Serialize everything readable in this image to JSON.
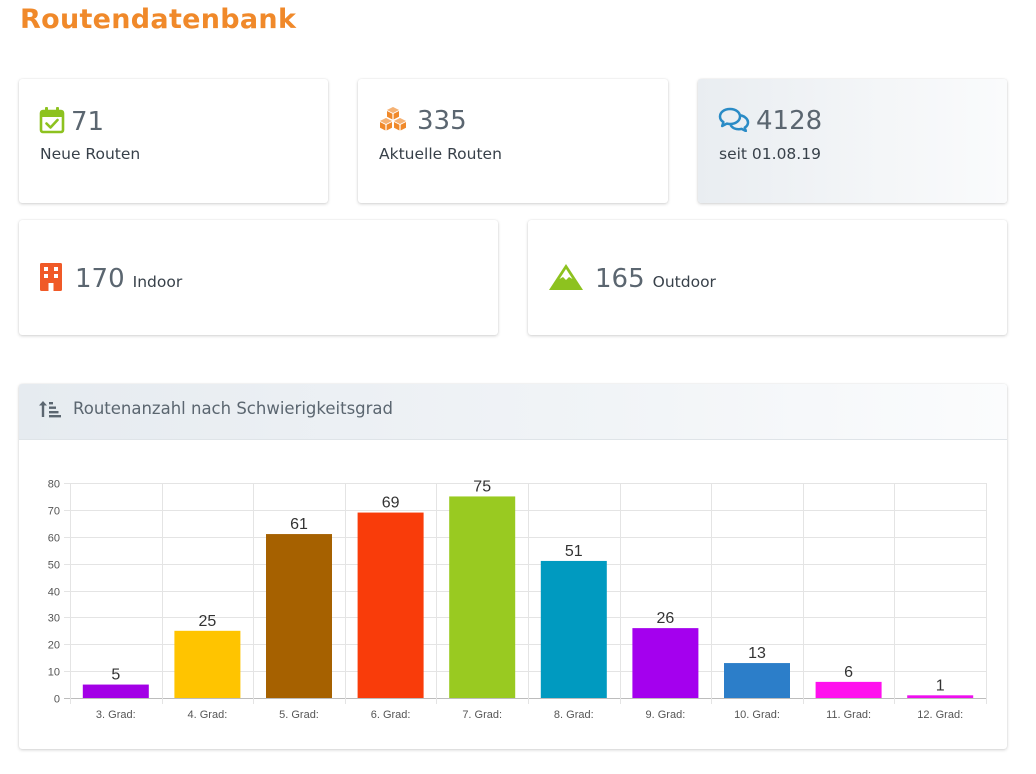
{
  "page": {
    "title": "Routendatenbank"
  },
  "stats": {
    "neue": {
      "value": "71",
      "label": "Neue Routen",
      "icon": "calendar-check-icon",
      "color": "#8dc21f"
    },
    "aktuelle": {
      "value": "335",
      "label": "Aktuelle Routen",
      "icon": "boxes-icon",
      "color": "#f0892a"
    },
    "comments": {
      "value": "4128",
      "label": "seit 01.08.19",
      "icon": "comments-icon",
      "color": "#2a8bc6"
    },
    "indoor": {
      "value": "170",
      "label": "Indoor",
      "icon": "building-icon",
      "color": "#f05a28"
    },
    "outdoor": {
      "value": "165",
      "label": "Outdoor",
      "icon": "mountain-icon",
      "color": "#8dc21f"
    }
  },
  "chart_panel": {
    "title": "Routenanzahl nach Schwierigkeitsgrad",
    "icon": "sort-amount-up-icon"
  },
  "chart_data": {
    "type": "bar",
    "title": "",
    "xlabel": "",
    "ylabel": "",
    "ylim": [
      0,
      80
    ],
    "yticks": [
      0,
      10,
      20,
      30,
      40,
      50,
      60,
      70,
      80
    ],
    "grid": true,
    "legend": "none",
    "categories": [
      "3. Grad:",
      "4. Grad:",
      "5. Grad:",
      "6. Grad:",
      "7. Grad:",
      "8. Grad:",
      "9. Grad:",
      "10. Grad:",
      "11. Grad:",
      "12. Grad:"
    ],
    "values": [
      5,
      25,
      61,
      69,
      75,
      51,
      26,
      13,
      6,
      1
    ],
    "colors": [
      "#a300e6",
      "#ffc400",
      "#a66100",
      "#f93c0a",
      "#99ca21",
      "#009ac0",
      "#a400ee",
      "#2c7ec9",
      "#ff10ee",
      "#ee10ee"
    ],
    "value_labels": true
  }
}
